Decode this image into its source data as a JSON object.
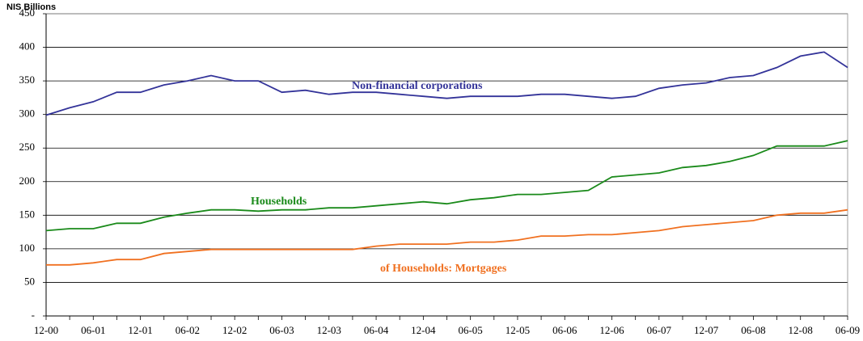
{
  "chart_data": {
    "type": "line",
    "y_label": "NIS Billions",
    "categories": [
      "12-00",
      null,
      "06-01",
      null,
      "12-01",
      null,
      "06-02",
      null,
      "12-02",
      null,
      "06-03",
      null,
      "12-03",
      null,
      "06-04",
      null,
      "12-04",
      null,
      "06-05",
      null,
      "12-05",
      null,
      "06-06",
      null,
      "12-06",
      null,
      "06-07",
      null,
      "12-07",
      null,
      "06-08",
      null,
      "12-08",
      null,
      "06-09"
    ],
    "series": [
      {
        "name": "Non-financial corporations",
        "color": "#333399",
        "values": [
          299,
          310,
          319,
          333,
          333,
          344,
          350,
          358,
          350,
          350,
          333,
          336,
          330,
          333,
          333,
          330,
          327,
          324,
          327,
          327,
          327,
          330,
          330,
          327,
          324,
          327,
          339,
          344,
          347,
          355,
          358,
          370,
          387,
          393,
          370
        ]
      },
      {
        "name": "Households",
        "color": "#1a8a1a",
        "values": [
          127,
          130,
          130,
          138,
          138,
          147,
          153,
          158,
          158,
          156,
          158,
          158,
          161,
          161,
          164,
          167,
          170,
          167,
          173,
          176,
          181,
          181,
          184,
          187,
          207,
          210,
          213,
          221,
          224,
          230,
          239,
          253,
          253,
          253,
          261
        ]
      },
      {
        "name": "of Households: Mortgages",
        "color": "#f07020",
        "values": [
          76,
          76,
          79,
          84,
          84,
          93,
          96,
          99,
          99,
          99,
          99,
          99,
          99,
          99,
          104,
          107,
          107,
          107,
          110,
          110,
          113,
          119,
          119,
          121,
          121,
          124,
          127,
          133,
          136,
          139,
          142,
          150,
          153,
          153,
          158
        ]
      }
    ],
    "ylim": [
      0,
      450
    ],
    "yticks": [
      {
        "value": 0,
        "label": "-"
      },
      50,
      100,
      150,
      200,
      250,
      300,
      350,
      400,
      450
    ],
    "grid": true
  }
}
